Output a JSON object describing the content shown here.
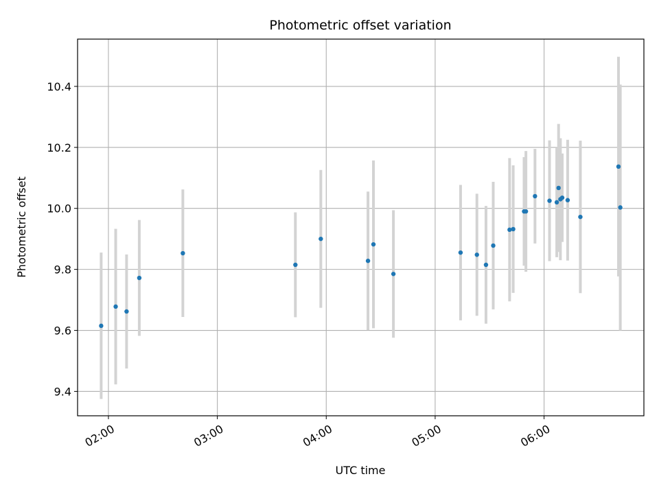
{
  "chart_data": {
    "type": "scatter",
    "title": "Photometric offset variation",
    "xlabel": "UTC time",
    "ylabel": "Photometric offset",
    "x_ticks": [
      "02:00",
      "03:00",
      "04:00",
      "05:00",
      "06:00"
    ],
    "y_ticks": [
      "9.4",
      "9.6",
      "9.8",
      "10.0",
      "10.2",
      "10.4"
    ],
    "xlim": [
      "01:43",
      "06:55"
    ],
    "ylim": [
      9.32,
      10.555
    ],
    "grid": true,
    "colors": {
      "points": "#1f77b4",
      "error_bars": "#d3d3d3",
      "grid": "#b0b0b0"
    },
    "points": [
      {
        "x": "01:56",
        "y": 9.615,
        "err": 0.24
      },
      {
        "x": "02:04",
        "y": 9.678,
        "err": 0.255
      },
      {
        "x": "02:10",
        "y": 9.662,
        "err": 0.187
      },
      {
        "x": "02:17",
        "y": 9.772,
        "err": 0.19
      },
      {
        "x": "02:41",
        "y": 9.853,
        "err": 0.209
      },
      {
        "x": "03:43",
        "y": 9.815,
        "err": 0.172
      },
      {
        "x": "03:57",
        "y": 9.9,
        "err": 0.226
      },
      {
        "x": "04:23",
        "y": 9.828,
        "err": 0.227
      },
      {
        "x": "04:26",
        "y": 9.882,
        "err": 0.275
      },
      {
        "x": "04:37",
        "y": 9.785,
        "err": 0.209
      },
      {
        "x": "05:14",
        "y": 9.855,
        "err": 0.222
      },
      {
        "x": "05:23",
        "y": 9.848,
        "err": 0.2
      },
      {
        "x": "05:28",
        "y": 9.815,
        "err": 0.193
      },
      {
        "x": "05:32",
        "y": 9.878,
        "err": 0.209
      },
      {
        "x": "05:41",
        "y": 9.93,
        "err": 0.235
      },
      {
        "x": "05:43",
        "y": 9.932,
        "err": 0.209
      },
      {
        "x": "05:49",
        "y": 9.99,
        "err": 0.178
      },
      {
        "x": "05:50",
        "y": 9.99,
        "err": 0.198
      },
      {
        "x": "05:55",
        "y": 10.04,
        "err": 0.155
      },
      {
        "x": "06:03",
        "y": 10.025,
        "err": 0.198
      },
      {
        "x": "06:07",
        "y": 10.02,
        "err": 0.18
      },
      {
        "x": "06:08",
        "y": 10.067,
        "err": 0.21
      },
      {
        "x": "06:09",
        "y": 10.03,
        "err": 0.2
      },
      {
        "x": "06:10",
        "y": 10.035,
        "err": 0.145
      },
      {
        "x": "06:13",
        "y": 10.027,
        "err": 0.198
      },
      {
        "x": "06:20",
        "y": 9.972,
        "err": 0.25
      },
      {
        "x": "06:41",
        "y": 10.137,
        "err": 0.36
      },
      {
        "x": "06:42",
        "y": 10.003,
        "err": 0.403
      }
    ]
  }
}
